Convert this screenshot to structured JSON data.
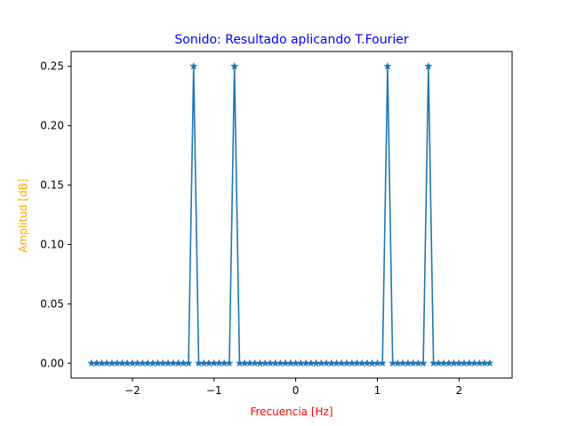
{
  "chart_data": {
    "type": "line",
    "title": "Sonido: Resultado aplicando T.Fourier",
    "xlabel": "Frecuencia [Hz]",
    "ylabel": "Amplitud [dB]",
    "colors": {
      "title": "#0000ff",
      "xlabel": "#ff0000",
      "ylabel": "#ffa500",
      "series": "#1f77b4"
    },
    "marker": "star",
    "grid": false,
    "xlim": [
      -2.75,
      2.65
    ],
    "ylim": [
      -0.0125,
      0.2625
    ],
    "xticks": [
      -2,
      -1,
      0,
      1,
      2
    ],
    "xtick_labels": [
      "−2",
      "−1",
      "0",
      "1",
      "2"
    ],
    "yticks": [
      0.0,
      0.05,
      0.1,
      0.15,
      0.2,
      0.25
    ],
    "ytick_labels": [
      "0.00",
      "0.05",
      "0.10",
      "0.15",
      "0.20",
      "0.25"
    ],
    "series": [
      {
        "x_start": -2.5,
        "x_step": 0.0625,
        "values": [
          0,
          0,
          0,
          0,
          0,
          0,
          0,
          0,
          0,
          0,
          0,
          0,
          0,
          0,
          0,
          0,
          0,
          0,
          0,
          0,
          0.25,
          0,
          0,
          0,
          0,
          0,
          0,
          0,
          0.25,
          0,
          0,
          0,
          0,
          0,
          0,
          0,
          0,
          0,
          0,
          0,
          0,
          0,
          0,
          0,
          0,
          0,
          0,
          0,
          0,
          0,
          0,
          0,
          0,
          0,
          0,
          0,
          0,
          0,
          0.25,
          0,
          0,
          0,
          0,
          0,
          0,
          0,
          0.25,
          0,
          0,
          0,
          0,
          0,
          0,
          0,
          0,
          0,
          0,
          0,
          0
        ]
      }
    ]
  }
}
